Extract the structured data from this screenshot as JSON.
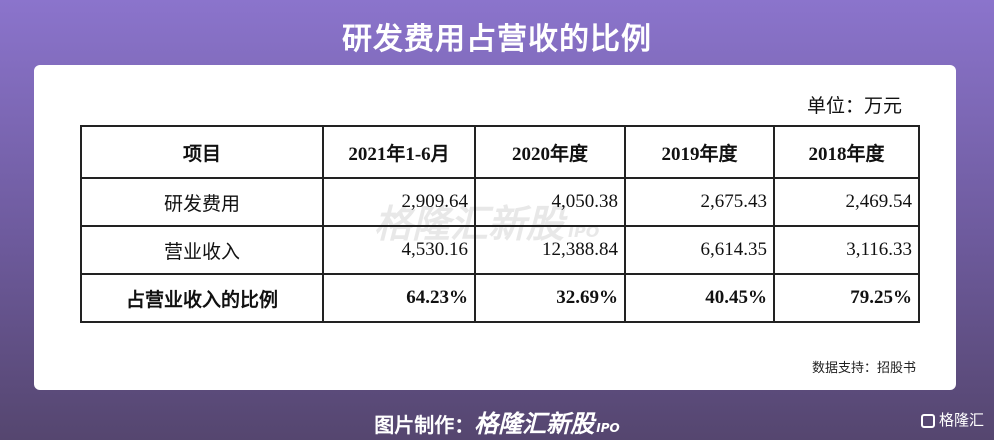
{
  "header": {
    "title": "研发费用占营收的比例"
  },
  "unit": "单位：万元",
  "table": {
    "columns": [
      "项目",
      "2021年1-6月",
      "2020年度",
      "2019年度",
      "2018年度"
    ],
    "rows": [
      [
        "研发费用",
        "2,909.64",
        "4,050.38",
        "2,675.43",
        "2,469.54"
      ],
      [
        "营业收入",
        "4,530.16",
        "12,388.84",
        "6,614.35",
        "3,116.33"
      ],
      [
        "占营业收入的比例",
        "64.23%",
        "32.69%",
        "40.45%",
        "79.25%"
      ]
    ]
  },
  "source": "数据支持：招股书",
  "watermark": {
    "brand": "格隆汇新股",
    "tag": "IPO"
  },
  "footer": {
    "label": "图片制作：",
    "brand": "格隆汇新股",
    "tag": "IPO",
    "logo": "格隆汇"
  }
}
